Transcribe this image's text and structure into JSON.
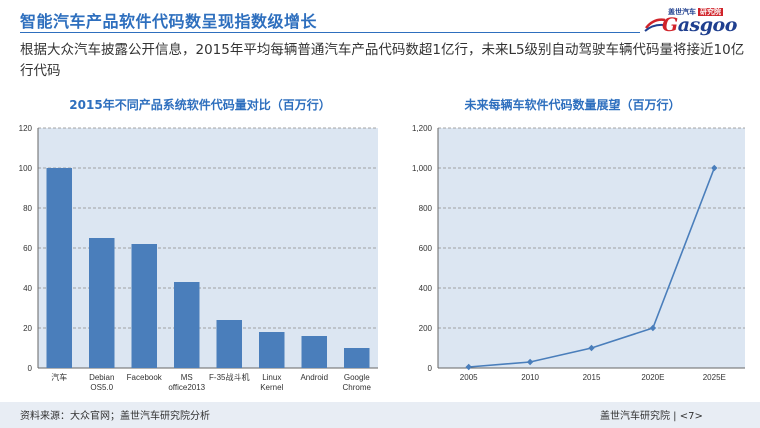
{
  "title": "智能汽车产品软件代码数呈现指数级增长",
  "subtitle": "根据大众汽车披露公开信息，2015年平均每辆普通汽车产品代码数超1亿行，未来L5级别自动驾驶车辆代码量将接近10亿行代码",
  "logo": {
    "top_text": "盖世汽车",
    "top_badge": "研究院",
    "main_prefix": "G",
    "main_rest": "asgoo"
  },
  "footer": {
    "source": "资料来源：大众官网；盖世汽车研究院分析",
    "org": "盖世汽车研究院",
    "page": "<7>"
  },
  "colors": {
    "title": "#2e6fbe",
    "bar": "#4a7ebb",
    "line": "#4a7ebb",
    "plot_bg": "#dce6f2"
  },
  "chart_data": [
    {
      "type": "bar",
      "title": "2015年不同产品系统软件代码量对比（百万行）",
      "categories": [
        "汽车",
        "Debian OS5.0",
        "Facebook",
        "MS office2013",
        "F-35战斗机",
        "Linux Kernel",
        "Android",
        "Google Chrome"
      ],
      "category_lines": [
        [
          "汽车"
        ],
        [
          "Debian",
          "OS5.0"
        ],
        [
          "Facebook"
        ],
        [
          "MS",
          "office2013"
        ],
        [
          "F-35战斗机"
        ],
        [
          "Linux",
          "Kernel"
        ],
        [
          "Android"
        ],
        [
          "Google",
          "Chrome"
        ]
      ],
      "values": [
        100,
        65,
        62,
        43,
        24,
        18,
        16,
        10
      ],
      "ylim": [
        0,
        120
      ],
      "yticks": [
        "0",
        "20",
        "40",
        "60",
        "80",
        "100",
        "120"
      ],
      "grid": true
    },
    {
      "type": "line",
      "title": "未来每辆车软件代码数量展望（百万行）",
      "categories": [
        "2005",
        "2010",
        "2015",
        "2020E",
        "2025E"
      ],
      "values": [
        5,
        30,
        100,
        200,
        1000
      ],
      "ylim": [
        0,
        1200
      ],
      "yticks": [
        "0",
        "200",
        "400",
        "600",
        "800",
        "1,000",
        "1,200"
      ],
      "grid": true
    }
  ]
}
